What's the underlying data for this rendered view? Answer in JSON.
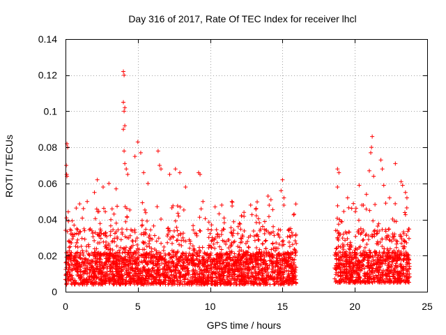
{
  "chart_data": {
    "type": "scatter",
    "title": "Day 316 of 2017, Rate Of TEC Index for receiver lhcl",
    "xlabel": "GPS time / hours",
    "ylabel": "ROTI / TECUs",
    "xlim": [
      0,
      25
    ],
    "ylim": [
      0,
      0.14
    ],
    "x_ticks": [
      0,
      5,
      10,
      15,
      20,
      25
    ],
    "x_tick_labels": [
      "0",
      "5",
      "10",
      "15",
      "20",
      "25"
    ],
    "y_ticks": [
      0,
      0.02,
      0.04,
      0.06,
      0.08,
      0.1,
      0.12,
      0.14
    ],
    "y_tick_labels": [
      "0",
      "0.02",
      "0.04",
      "0.06",
      "0.08",
      "0.1",
      "0.12",
      "0.14"
    ],
    "grid": true,
    "marker": "+",
    "marker_color": "#ff0000",
    "series": [
      {
        "name": "ROTI",
        "segments": [
          {
            "x_start": 0.0,
            "x_end": 15.95,
            "typical_min": 0.004,
            "typical_max": 0.035
          },
          {
            "x_start": 18.6,
            "x_end": 23.8,
            "typical_min": 0.005,
            "typical_max": 0.035
          }
        ],
        "peaks": [
          {
            "x": 0.1,
            "y": 0.082
          },
          {
            "x": 0.15,
            "y": 0.08
          },
          {
            "x": 0.05,
            "y": 0.07
          },
          {
            "x": 0.08,
            "y": 0.065
          },
          {
            "x": 0.1,
            "y": 0.064
          },
          {
            "x": 1.5,
            "y": 0.05
          },
          {
            "x": 2.0,
            "y": 0.055
          },
          {
            "x": 2.2,
            "y": 0.062
          },
          {
            "x": 2.6,
            "y": 0.058
          },
          {
            "x": 3.0,
            "y": 0.06
          },
          {
            "x": 3.5,
            "y": 0.057
          },
          {
            "x": 4.0,
            "y": 0.122
          },
          {
            "x": 4.05,
            "y": 0.12
          },
          {
            "x": 4.0,
            "y": 0.105
          },
          {
            "x": 4.1,
            "y": 0.102
          },
          {
            "x": 4.05,
            "y": 0.1
          },
          {
            "x": 4.1,
            "y": 0.092
          },
          {
            "x": 4.0,
            "y": 0.09
          },
          {
            "x": 4.05,
            "y": 0.078
          },
          {
            "x": 4.1,
            "y": 0.071
          },
          {
            "x": 4.2,
            "y": 0.068
          },
          {
            "x": 4.3,
            "y": 0.065
          },
          {
            "x": 4.8,
            "y": 0.075
          },
          {
            "x": 5.0,
            "y": 0.083
          },
          {
            "x": 5.2,
            "y": 0.077
          },
          {
            "x": 5.4,
            "y": 0.066
          },
          {
            "x": 5.7,
            "y": 0.06
          },
          {
            "x": 6.4,
            "y": 0.078
          },
          {
            "x": 6.5,
            "y": 0.07
          },
          {
            "x": 6.6,
            "y": 0.068
          },
          {
            "x": 7.2,
            "y": 0.065
          },
          {
            "x": 7.6,
            "y": 0.068
          },
          {
            "x": 7.9,
            "y": 0.066
          },
          {
            "x": 8.3,
            "y": 0.058
          },
          {
            "x": 9.2,
            "y": 0.066
          },
          {
            "x": 9.3,
            "y": 0.065
          },
          {
            "x": 9.5,
            "y": 0.05
          },
          {
            "x": 10.8,
            "y": 0.048
          },
          {
            "x": 11.5,
            "y": 0.05
          },
          {
            "x": 12.8,
            "y": 0.048
          },
          {
            "x": 14.0,
            "y": 0.053
          },
          {
            "x": 14.2,
            "y": 0.051
          },
          {
            "x": 14.9,
            "y": 0.056
          },
          {
            "x": 15.0,
            "y": 0.062
          },
          {
            "x": 15.1,
            "y": 0.052
          },
          {
            "x": 15.8,
            "y": 0.043
          },
          {
            "x": 18.8,
            "y": 0.068
          },
          {
            "x": 18.9,
            "y": 0.066
          },
          {
            "x": 18.8,
            "y": 0.058
          },
          {
            "x": 19.5,
            "y": 0.052
          },
          {
            "x": 20.3,
            "y": 0.059
          },
          {
            "x": 20.8,
            "y": 0.054
          },
          {
            "x": 21.2,
            "y": 0.086
          },
          {
            "x": 21.15,
            "y": 0.08
          },
          {
            "x": 21.1,
            "y": 0.077
          },
          {
            "x": 21.0,
            "y": 0.067
          },
          {
            "x": 21.3,
            "y": 0.064
          },
          {
            "x": 21.8,
            "y": 0.073
          },
          {
            "x": 21.9,
            "y": 0.068
          },
          {
            "x": 22.0,
            "y": 0.059
          },
          {
            "x": 22.4,
            "y": 0.052
          },
          {
            "x": 22.8,
            "y": 0.071
          },
          {
            "x": 23.2,
            "y": 0.061
          },
          {
            "x": 23.3,
            "y": 0.059
          },
          {
            "x": 23.5,
            "y": 0.055
          },
          {
            "x": 23.6,
            "y": 0.052
          }
        ]
      }
    ]
  }
}
